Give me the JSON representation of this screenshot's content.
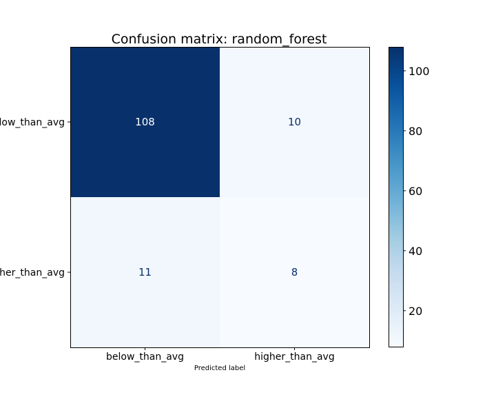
{
  "chart_data": {
    "type": "heatmap",
    "title": "Confusion matrix: random_forest",
    "xlabel": "Predicted label",
    "ylabel": "",
    "x_categories": [
      "below_than_avg",
      "higher_than_avg"
    ],
    "y_categories": [
      "below_than_avg",
      "higher_than_avg"
    ],
    "values": [
      [
        108,
        10
      ],
      [
        11,
        8
      ]
    ],
    "colormap": "Blues",
    "colorbar": {
      "range": [
        8,
        108
      ],
      "ticks": [
        20,
        40,
        60,
        80,
        100
      ],
      "tick_labels": [
        "20",
        "40",
        "60",
        "80",
        "100"
      ]
    },
    "colors": {
      "low": "#f7fbff",
      "high": "#08306b",
      "text_on_dark": "#ffffff",
      "text_on_light": "#08306b"
    }
  }
}
